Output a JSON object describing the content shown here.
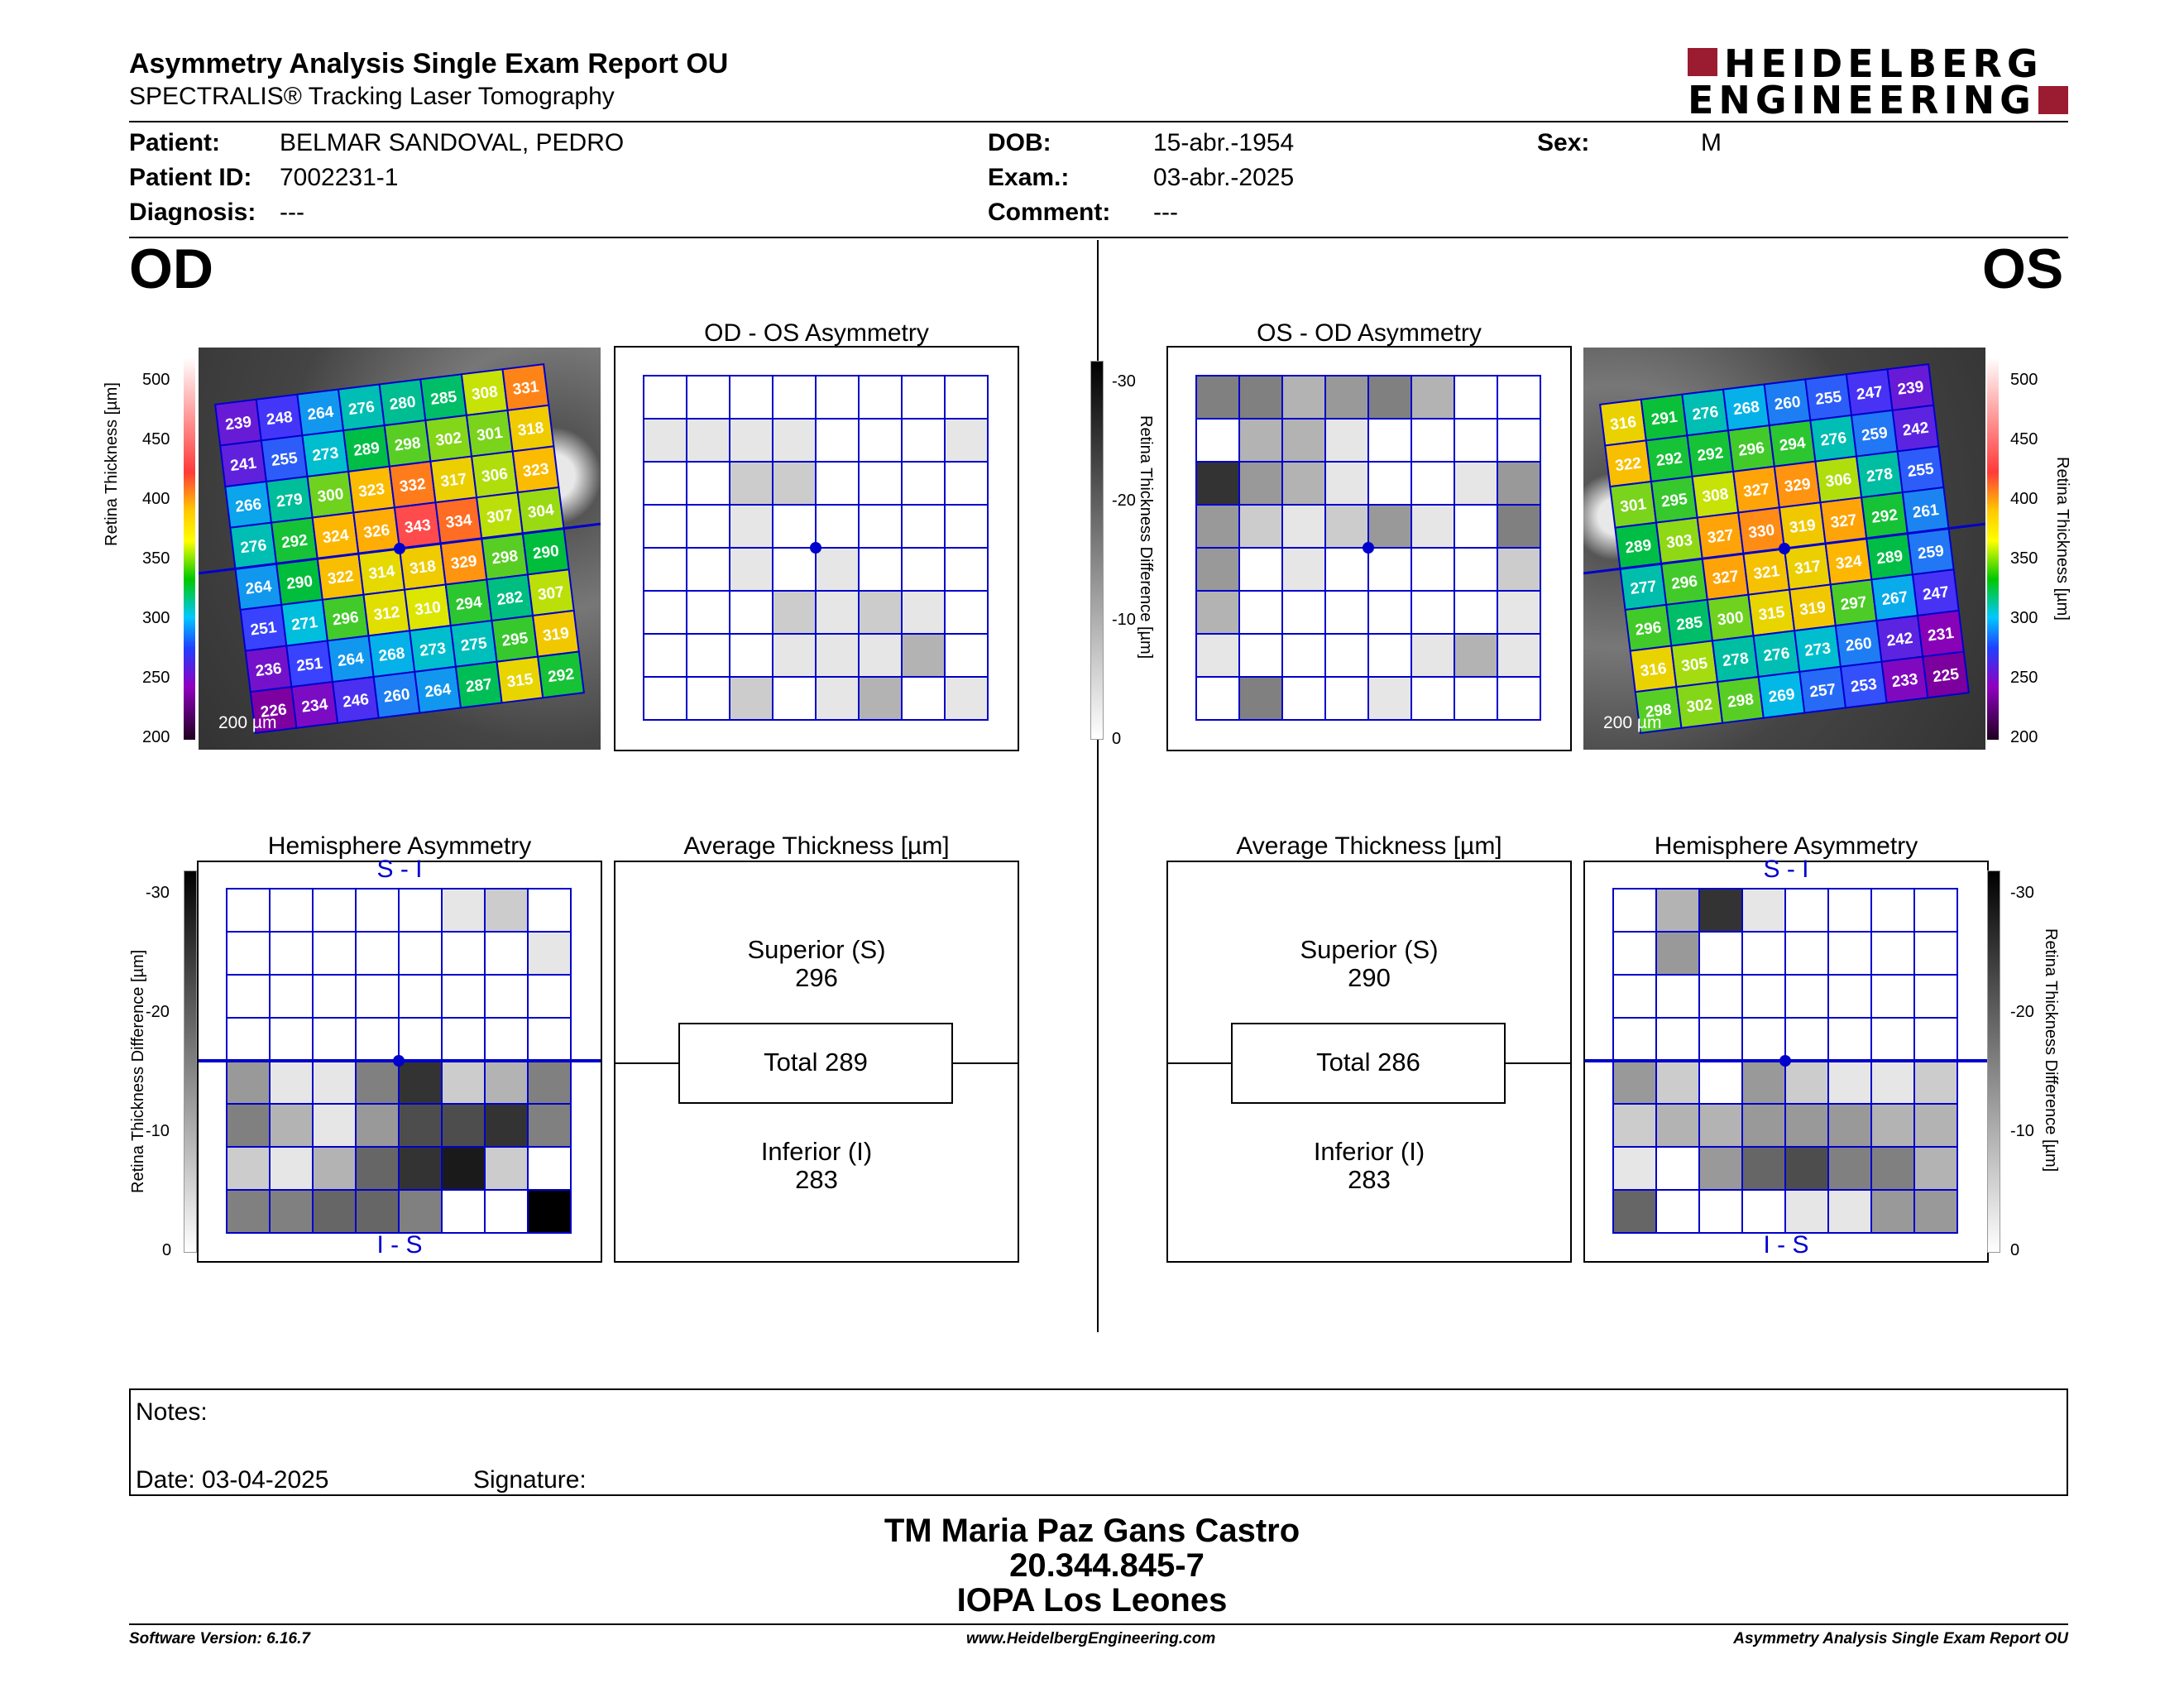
{
  "header": {
    "title": "Asymmetry Analysis Single Exam Report OU",
    "subtitle": "SPECTRALIS® Tracking Laser Tomography",
    "logo_top": "HEIDELBERG",
    "logo_bottom": "ENGINEERING"
  },
  "patient": {
    "patient_label": "Patient:",
    "patient_value": "BELMAR SANDOVAL, PEDRO",
    "id_label": "Patient ID:",
    "id_value": "7002231-1",
    "diag_label": "Diagnosis:",
    "diag_value": "---",
    "dob_label": "DOB:",
    "dob_value": "15-abr.-1954",
    "exam_label": "Exam.:",
    "exam_value": "03-abr.-2025",
    "comment_label": "Comment:",
    "comment_value": "---",
    "sex_label": "Sex:",
    "sex_value": "M"
  },
  "od": {
    "eye_label": "OD",
    "asym_title": "OD - OS Asymmetry",
    "hemi_title": "Hemisphere Asymmetry",
    "avg_title": "Average Thickness [µm]",
    "superior_label": "Superior (S)",
    "superior_value": "296",
    "total_label": "Total 289",
    "inferior_label": "Inferior (I)",
    "inferior_value": "283",
    "scale_label": "200 µm",
    "si": "S - I",
    "is": "I - S",
    "thickness": [
      [
        239,
        248,
        264,
        276,
        280,
        285,
        308,
        331
      ],
      [
        241,
        255,
        273,
        289,
        298,
        302,
        301,
        318
      ],
      [
        266,
        279,
        300,
        323,
        332,
        317,
        306,
        323
      ],
      [
        276,
        292,
        324,
        326,
        343,
        334,
        307,
        304
      ],
      [
        264,
        290,
        322,
        314,
        318,
        329,
        298,
        290
      ],
      [
        251,
        271,
        296,
        312,
        310,
        294,
        282,
        307
      ],
      [
        236,
        251,
        264,
        268,
        273,
        275,
        295,
        319
      ],
      [
        226,
        234,
        246,
        260,
        264,
        287,
        315,
        292
      ]
    ],
    "asym_levels": [
      [
        0,
        0,
        0,
        0,
        0,
        0,
        0,
        0
      ],
      [
        1,
        1,
        1,
        1,
        0,
        0,
        0,
        1
      ],
      [
        0,
        0,
        2,
        2,
        0,
        0,
        0,
        0
      ],
      [
        0,
        0,
        1,
        0,
        0,
        0,
        0,
        0
      ],
      [
        0,
        0,
        1,
        0,
        1,
        0,
        0,
        0
      ],
      [
        0,
        0,
        0,
        2,
        1,
        2,
        1,
        0
      ],
      [
        0,
        0,
        0,
        1,
        1,
        1,
        3,
        0
      ],
      [
        0,
        0,
        2,
        0,
        1,
        3,
        0,
        1
      ]
    ],
    "hemi_levels": [
      [
        0,
        0,
        0,
        0,
        0,
        1,
        2,
        0
      ],
      [
        0,
        0,
        0,
        0,
        0,
        0,
        0,
        1
      ],
      [
        0,
        0,
        0,
        0,
        0,
        0,
        0,
        0
      ],
      [
        0,
        0,
        0,
        0,
        0,
        0,
        0,
        0
      ],
      [
        4,
        1,
        1,
        5,
        8,
        2,
        3,
        5
      ],
      [
        5,
        3,
        1,
        4,
        7,
        7,
        8,
        5
      ],
      [
        2,
        1,
        3,
        6,
        8,
        9,
        2,
        0
      ],
      [
        5,
        5,
        6,
        6,
        5,
        0,
        0,
        10
      ]
    ]
  },
  "os": {
    "eye_label": "OS",
    "asym_title": "OS - OD Asymmetry",
    "hemi_title": "Hemisphere Asymmetry",
    "avg_title": "Average Thickness [µm]",
    "superior_label": "Superior (S)",
    "superior_value": "290",
    "total_label": "Total 286",
    "inferior_label": "Inferior (I)",
    "inferior_value": "283",
    "scale_label": "200 µm",
    "si": "S - I",
    "is": "I - S",
    "thickness": [
      [
        316,
        291,
        276,
        268,
        260,
        255,
        247,
        239
      ],
      [
        322,
        292,
        292,
        296,
        294,
        276,
        259,
        242
      ],
      [
        301,
        295,
        308,
        327,
        329,
        306,
        278,
        255
      ],
      [
        289,
        303,
        327,
        330,
        319,
        327,
        292,
        261
      ],
      [
        277,
        296,
        327,
        321,
        317,
        324,
        289,
        259
      ],
      [
        296,
        285,
        300,
        315,
        319,
        297,
        267,
        247
      ],
      [
        316,
        305,
        278,
        276,
        273,
        260,
        242,
        231
      ],
      [
        298,
        302,
        298,
        269,
        257,
        253,
        233,
        225
      ]
    ],
    "asym_levels": [
      [
        5,
        5,
        3,
        4,
        5,
        3,
        0,
        0
      ],
      [
        0,
        3,
        3,
        1,
        0,
        0,
        0,
        0
      ],
      [
        8,
        4,
        3,
        1,
        0,
        0,
        1,
        4
      ],
      [
        4,
        2,
        1,
        2,
        4,
        1,
        0,
        5
      ],
      [
        4,
        0,
        1,
        0,
        0,
        0,
        0,
        2
      ],
      [
        3,
        0,
        0,
        0,
        0,
        0,
        0,
        1
      ],
      [
        1,
        0,
        0,
        0,
        0,
        1,
        3,
        1
      ],
      [
        0,
        5,
        0,
        0,
        1,
        0,
        0,
        0
      ]
    ],
    "hemi_levels": [
      [
        0,
        3,
        8,
        1,
        0,
        0,
        0,
        0
      ],
      [
        0,
        4,
        0,
        0,
        0,
        0,
        0,
        0
      ],
      [
        0,
        0,
        0,
        0,
        0,
        0,
        0,
        0
      ],
      [
        0,
        0,
        0,
        0,
        0,
        0,
        0,
        0
      ],
      [
        4,
        2,
        0,
        4,
        2,
        1,
        1,
        2
      ],
      [
        2,
        3,
        3,
        4,
        4,
        4,
        3,
        3
      ],
      [
        1,
        0,
        4,
        6,
        7,
        5,
        5,
        3
      ],
      [
        6,
        0,
        0,
        0,
        1,
        1,
        4,
        4
      ]
    ]
  },
  "colorbar": {
    "label": "Retina Thickness [µm]",
    "ticks": [
      "500",
      "450",
      "400",
      "350",
      "300",
      "250",
      "200"
    ]
  },
  "diffbar": {
    "label": "Retina Thickness Difference [µm]",
    "ticks": [
      "-30",
      "-20",
      "-10",
      "0"
    ]
  },
  "notes": {
    "notes_label": "Notes:",
    "date_label": "Date: 03-04-2025",
    "signature_label": "Signature:"
  },
  "signature": {
    "name": "TM Maria Paz Gans Castro",
    "rut": "20.344.845-7",
    "org": "IOPA Los Leones"
  },
  "footer": {
    "left": "Software Version: 6.16.7",
    "center": "www.HeidelbergEngineering.com",
    "right": "Asymmetry Analysis Single Exam Report OU"
  },
  "colors": {
    "grid_blue": "#0000cc",
    "logo_red": "#9b1b30"
  }
}
